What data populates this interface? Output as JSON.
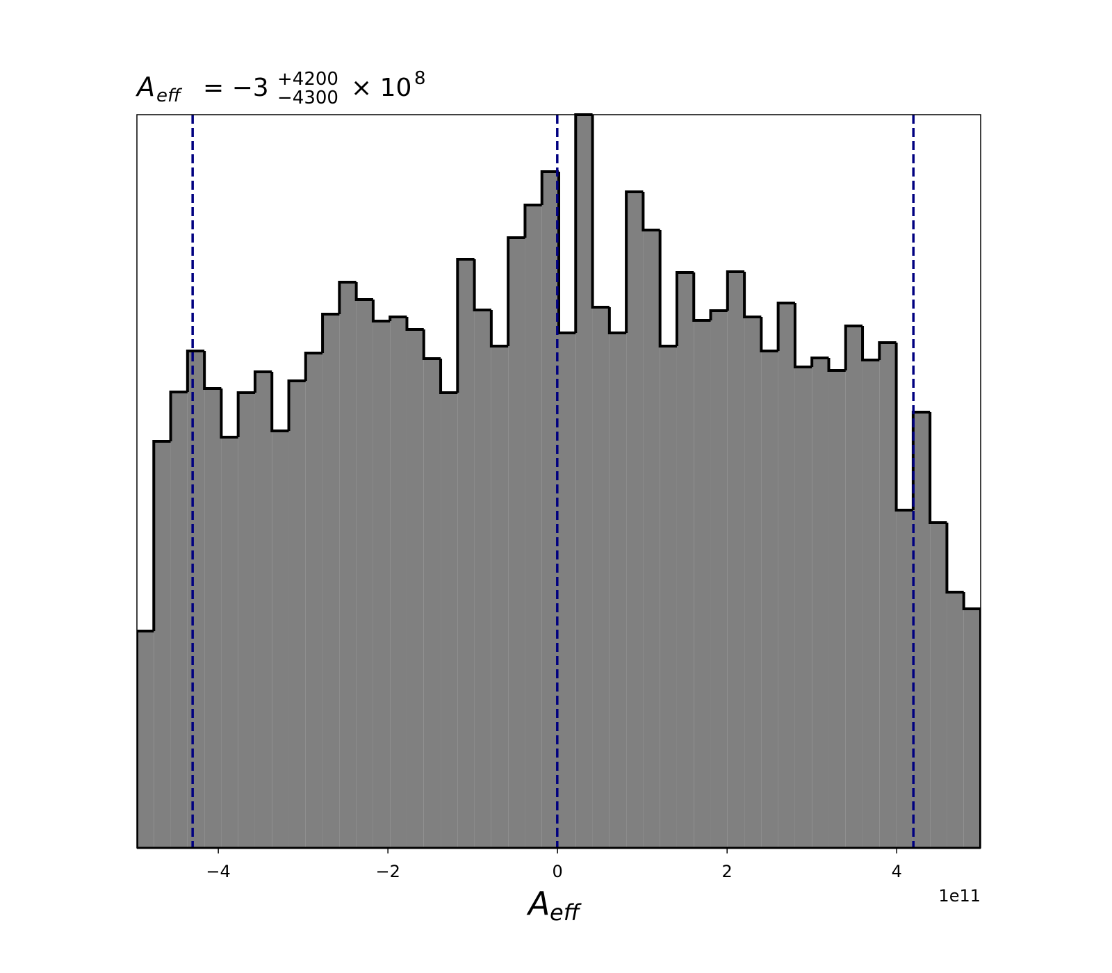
{
  "chart_data": {
    "type": "histogram",
    "title": {
      "symbol": "A",
      "symbol_sub": "eff",
      "equals": "= −3",
      "upper": "+4200",
      "lower": "−4300",
      "times": "× 10",
      "exponent": "8"
    },
    "x_label": {
      "symbol": "A",
      "symbol_sub": "eff"
    },
    "x_offset_text": "1e11",
    "bins": [
      -4.96,
      -4.761,
      -4.562,
      -4.363,
      -4.164,
      -3.965,
      -3.766,
      -3.567,
      -3.368,
      -3.169,
      -2.97,
      -2.771,
      -2.572,
      -2.373,
      -2.174,
      -1.975,
      -1.776,
      -1.577,
      -1.378,
      -1.179,
      -0.98,
      -0.781,
      -0.582,
      -0.383,
      -0.184,
      0.015,
      0.214,
      0.413,
      0.612,
      0.811,
      1.01,
      1.209,
      1.408,
      1.607,
      1.806,
      2.005,
      2.204,
      2.403,
      2.602,
      2.801,
      3.0,
      3.199,
      3.398,
      3.597,
      3.796,
      3.995,
      4.194,
      4.393,
      4.592,
      4.791,
      4.99
    ],
    "values": [
      31.2,
      58.5,
      65.6,
      71.5,
      66.1,
      59.1,
      65.5,
      68.5,
      60.0,
      67.2,
      71.2,
      76.8,
      81.4,
      78.9,
      75.8,
      76.4,
      74.6,
      70.4,
      65.5,
      84.7,
      77.4,
      72.2,
      87.8,
      92.5,
      97.3,
      74.1,
      105.5,
      77.8,
      74.1,
      94.4,
      88.9,
      72.2,
      82.8,
      75.9,
      77.3,
      82.9,
      76.4,
      71.5,
      78.4,
      69.2,
      70.5,
      68.7,
      75.1,
      70.2,
      72.7,
      48.6,
      62.7,
      46.8,
      36.8,
      34.4
    ],
    "color": "#808080",
    "edge_color": "#000000",
    "vlines": [
      -4.303,
      -0.003,
      4.197
    ],
    "vline_color": "#000080",
    "xlim": [
      -4.96,
      4.99
    ],
    "ylim": [
      0,
      105.5
    ],
    "xticks": [
      {
        "value": -4,
        "label": "−4"
      },
      {
        "value": -2,
        "label": "−2"
      },
      0,
      2,
      4
    ]
  }
}
